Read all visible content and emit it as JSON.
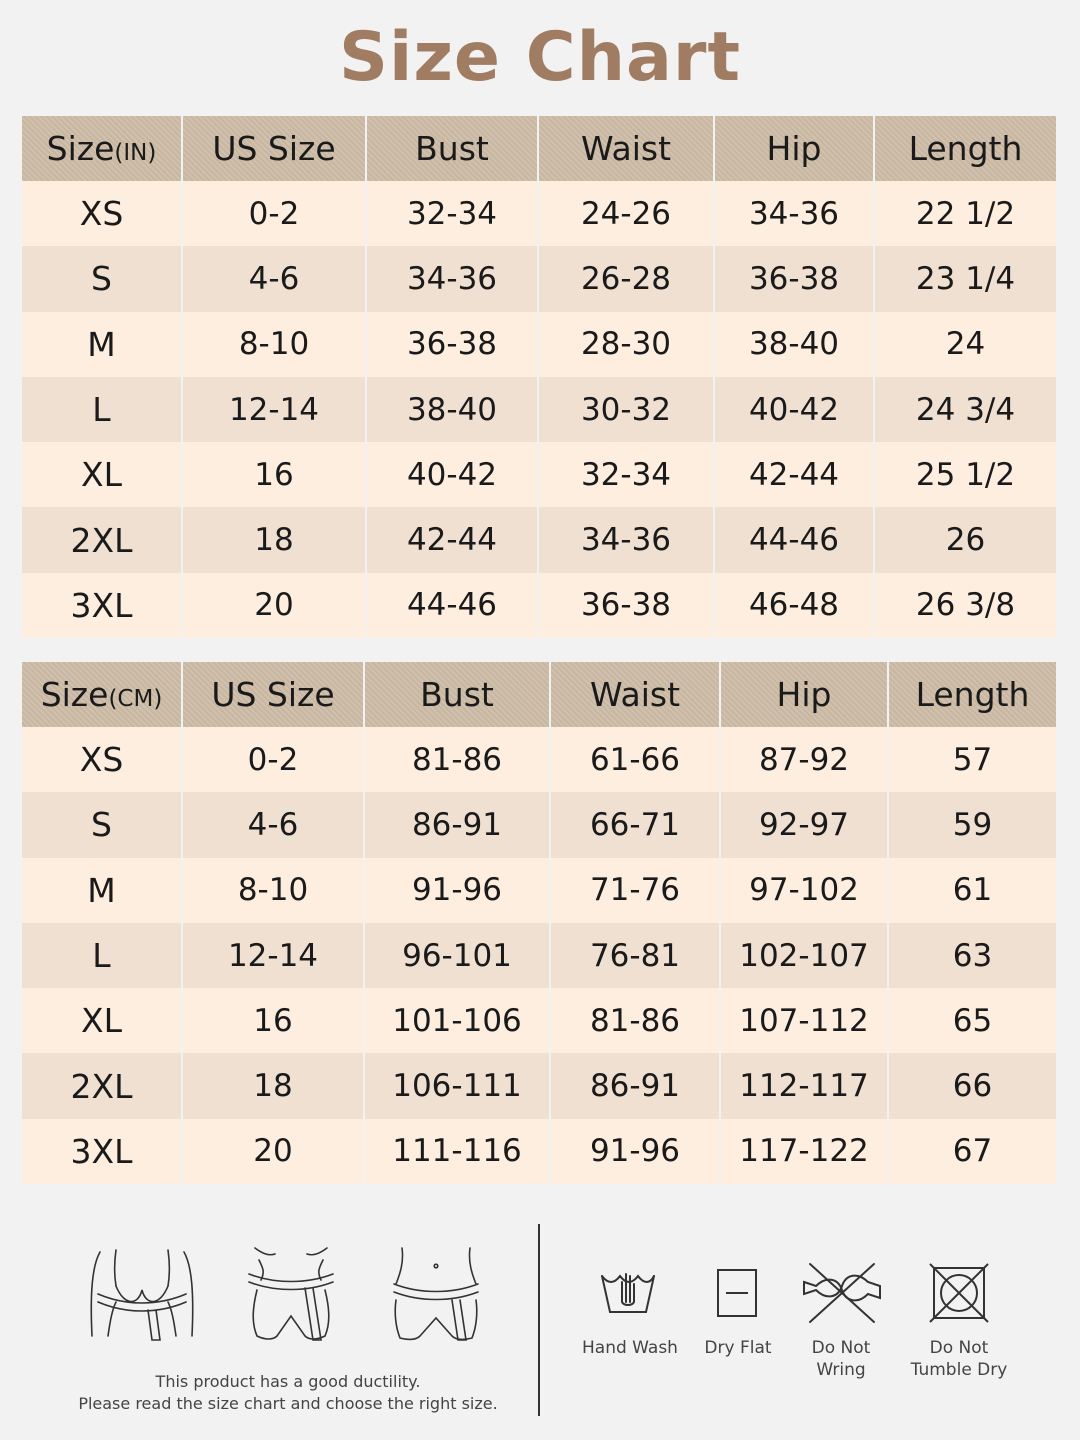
{
  "title": "Size Chart",
  "colors": {
    "title": "#a07c63",
    "header_bg": "#cdbca7",
    "row_light": "#fdeedf",
    "row_dark": "#efe0d2",
    "page_bg": "#f2f2f2"
  },
  "inch_table": {
    "size_label": "Size",
    "unit_label": "(IN)",
    "headers": [
      "US Size",
      "Bust",
      "Waist",
      "Hip",
      "Length"
    ],
    "rows": [
      [
        "XS",
        "0-2",
        "32-34",
        "24-26",
        "34-36",
        "22 1/2"
      ],
      [
        "S",
        "4-6",
        "34-36",
        "26-28",
        "36-38",
        "23 1/4"
      ],
      [
        "M",
        "8-10",
        "36-38",
        "28-30",
        "38-40",
        "24"
      ],
      [
        "L",
        "12-14",
        "38-40",
        "30-32",
        "40-42",
        "24 3/4"
      ],
      [
        "XL",
        "16",
        "40-42",
        "32-34",
        "42-44",
        "25 1/2"
      ],
      [
        "2XL",
        "18",
        "42-44",
        "34-36",
        "44-46",
        "26"
      ],
      [
        "3XL",
        "20",
        "44-46",
        "36-38",
        "46-48",
        "26 3/8"
      ]
    ]
  },
  "cm_table": {
    "size_label": "Size",
    "unit_label": "(CM)",
    "headers": [
      "US Size",
      "Bust",
      "Waist",
      "Hip",
      "Length"
    ],
    "rows": [
      [
        "XS",
        "0-2",
        "81-86",
        "61-66",
        "87-92",
        "57"
      ],
      [
        "S",
        "4-6",
        "86-91",
        "66-71",
        "92-97",
        "59"
      ],
      [
        "M",
        "8-10",
        "91-96",
        "71-76",
        "97-102",
        "61"
      ],
      [
        "L",
        "12-14",
        "96-101",
        "76-81",
        "102-107",
        "63"
      ],
      [
        "XL",
        "16",
        "101-106",
        "81-86",
        "107-112",
        "65"
      ],
      [
        "2XL",
        "18",
        "106-111",
        "86-91",
        "112-117",
        "66"
      ],
      [
        "3XL",
        "20",
        "111-116",
        "91-96",
        "117-122",
        "67"
      ]
    ]
  },
  "measurement_figures": [
    "bust-measure-icon",
    "waist-measure-icon",
    "hip-measure-icon"
  ],
  "note": {
    "line1": "This product has a good ductility.",
    "line2": "Please read the size chart and choose the right size."
  },
  "care": {
    "hand_wash": "Hand Wash",
    "dry_flat": "Dry Flat",
    "do_not_wring_1": "Do Not",
    "do_not_wring_2": "Wring",
    "do_not_tumble_1": "Do Not",
    "do_not_tumble_2": "Tumble Dry",
    "icons": [
      "hand-wash-icon",
      "dry-flat-icon",
      "do-not-wring-icon",
      "do-not-tumble-dry-icon"
    ]
  }
}
